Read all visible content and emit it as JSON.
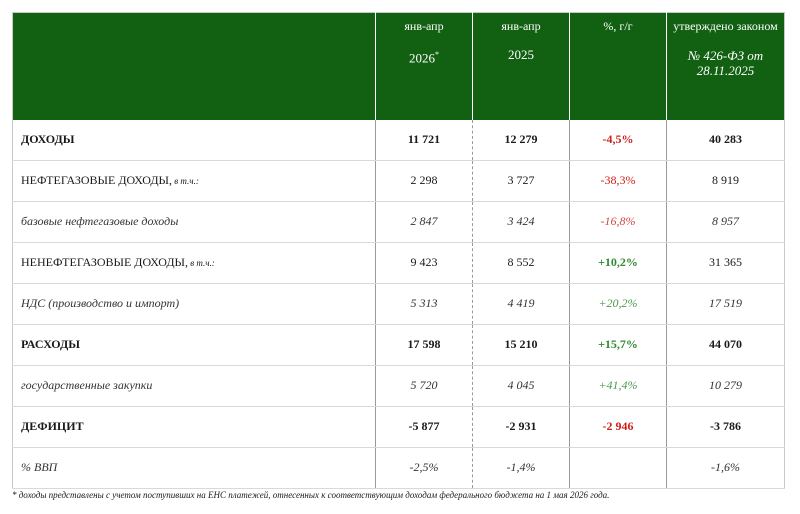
{
  "header": {
    "col1_period": "янв-апр",
    "col1_year": "2026",
    "col1_mark": "*",
    "col2_period": "янв-апр",
    "col2_year": "2025",
    "col3": "%, г/г",
    "col4_title": "утверждено законом",
    "col4_ref": "№ 426-ФЗ от 28.11.2025"
  },
  "rows": [
    {
      "label": "ДОХОДЫ",
      "suffix": "",
      "v2026": "11 721",
      "v2025": "12 279",
      "pct": "-4,5%",
      "law": "40 283"
    },
    {
      "label": "НЕФТЕГАЗОВЫЕ ДОХОДЫ,",
      "suffix": " в т.ч.:",
      "v2026": "2 298",
      "v2025": "3 727",
      "pct": "-38,3%",
      "law": "8 919"
    },
    {
      "label": "базовые нефтегазовые доходы",
      "suffix": "",
      "v2026": "2 847",
      "v2025": "3 424",
      "pct": "-16,8%",
      "law": "8 957"
    },
    {
      "label": "НЕНЕФТЕГАЗОВЫЕ ДОХОДЫ,",
      "suffix": " в т.ч.:",
      "v2026": "9 423",
      "v2025": "8 552",
      "pct": "+10,2%",
      "law": "31 365"
    },
    {
      "label": "НДС (производство и импорт)",
      "suffix": "",
      "v2026": "5 313",
      "v2025": "4 419",
      "pct": "+20,2%",
      "law": "17 519"
    },
    {
      "label": "РАСХОДЫ",
      "suffix": "",
      "v2026": "17 598",
      "v2025": "15 210",
      "pct": "+15,7%",
      "law": "44 070"
    },
    {
      "label": "государственные закупки",
      "suffix": "",
      "v2026": "5 720",
      "v2025": "4 045",
      "pct": "+41,4%",
      "law": "10 279"
    },
    {
      "label": "ДЕФИЦИТ",
      "suffix": "",
      "v2026": "-5 877",
      "v2025": "-2 931",
      "pct": "-2 946",
      "law": "-3 786"
    },
    {
      "label": "% ВВП",
      "suffix": "",
      "v2026": "-2,5%",
      "v2025": "-1,4%",
      "pct": "",
      "law": "-1,6%"
    }
  ],
  "footnote": "* доходы представлены с учетом поступивших на ЕНС платежей, отнесенных к соответствующим доходам федерального бюджета на 1 мая 2026 года.",
  "colors": {
    "header_bg": "#126112",
    "negative": "#d0201a",
    "positive": "#2e8b2e"
  }
}
